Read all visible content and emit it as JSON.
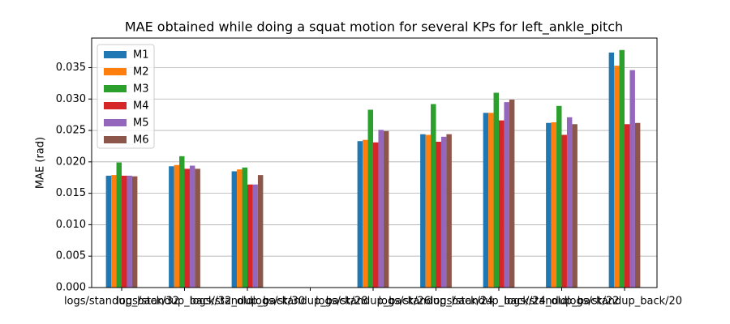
{
  "chart_data": {
    "type": "bar",
    "title": "MAE obtained while doing a squat motion for several KPs for left_ankle_pitch",
    "y_label": "MAE (rad)",
    "categories": [
      "logs/standup_back/32",
      "logs/standup_back/32_old",
      "logs/standup_back/30",
      "logs/standup_back/28",
      "logs/standup_back/26",
      "logs/standup_back/24",
      "logs/standup_back/24_old",
      "logs/standup_back/22",
      "logs/standup_back/20"
    ],
    "series": [
      {
        "name": "M1",
        "color": "#1f77b4",
        "values": [
          0.0178,
          0.0193,
          0.0185,
          null,
          0.0233,
          0.0244,
          0.0278,
          0.0262,
          0.0374
        ]
      },
      {
        "name": "M2",
        "color": "#ff7f0e",
        "values": [
          0.0179,
          0.0195,
          0.0188,
          null,
          0.0235,
          0.0243,
          0.0278,
          0.0263,
          0.0353
        ]
      },
      {
        "name": "M3",
        "color": "#2ca02c",
        "values": [
          0.0199,
          0.0209,
          0.0191,
          null,
          0.0283,
          0.0292,
          0.031,
          0.0289,
          0.0378
        ]
      },
      {
        "name": "M4",
        "color": "#d62728",
        "values": [
          0.0178,
          0.0189,
          0.0164,
          null,
          0.0231,
          0.0232,
          0.0266,
          0.0243,
          0.026
        ]
      },
      {
        "name": "M5",
        "color": "#9467bd",
        "values": [
          0.0178,
          0.0194,
          0.0164,
          null,
          0.0251,
          0.024,
          0.0295,
          0.0271,
          0.0346
        ]
      },
      {
        "name": "M6",
        "color": "#8c564b",
        "values": [
          0.0177,
          0.0189,
          0.0179,
          null,
          0.0249,
          0.0244,
          0.0299,
          0.026,
          0.0262
        ]
      }
    ],
    "ylim": [
      0,
      0.0397
    ],
    "yticks": [
      {
        "value": 0,
        "label": "0.000"
      },
      {
        "value": 0.005,
        "label": "0.005"
      },
      {
        "value": 0.01,
        "label": "0.010"
      },
      {
        "value": 0.015,
        "label": "0.015"
      },
      {
        "value": 0.02,
        "label": "0.020"
      },
      {
        "value": 0.025,
        "label": "0.025"
      },
      {
        "value": 0.03,
        "label": "0.030"
      },
      {
        "value": 0.035,
        "label": "0.035"
      }
    ],
    "grid": true,
    "legend": "upper left"
  }
}
